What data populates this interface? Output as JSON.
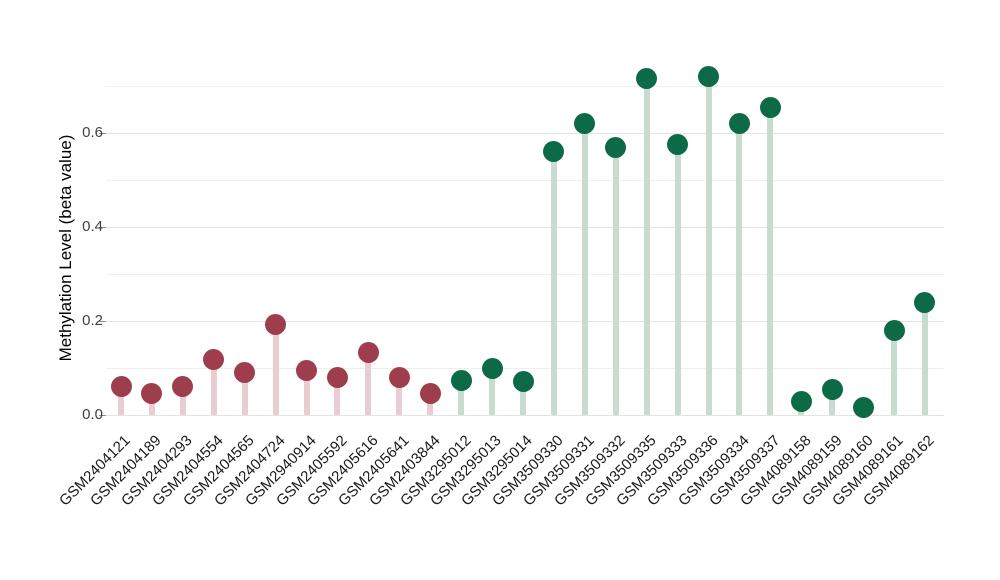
{
  "chart_data": {
    "type": "scatter",
    "style": "lollipop",
    "title": "",
    "xlabel": "",
    "ylabel": "Methylation Level (beta value)",
    "ylim": [
      0,
      0.75
    ],
    "yticks": [
      {
        "value": 0.0,
        "label": "0.0"
      },
      {
        "value": 0.2,
        "label": "0.2"
      },
      {
        "value": 0.4,
        "label": "0.4"
      },
      {
        "value": 0.6,
        "label": "0.6"
      }
    ],
    "minor_gridlines": [
      0.1,
      0.3,
      0.5,
      0.7
    ],
    "layout_hints": {
      "grid": true,
      "legend": "none",
      "x_label_rotation_deg": 45,
      "background": "#ffffff",
      "major_grid_color": "#e3e3e3",
      "minor_grid_color": "#efefef"
    },
    "groups": [
      {
        "name": "maroon-group",
        "dot_color": "#9e3d4c",
        "stem_color": "#e9cdd3"
      },
      {
        "name": "green-group",
        "dot_color": "#0d6a47",
        "stem_color": "#c7dbd1"
      }
    ],
    "samples": [
      {
        "id": "GSM2404121",
        "value": 0.06,
        "group": 0
      },
      {
        "id": "GSM2404189",
        "value": 0.045,
        "group": 0
      },
      {
        "id": "GSM2404293",
        "value": 0.06,
        "group": 0
      },
      {
        "id": "GSM2404554",
        "value": 0.118,
        "group": 0
      },
      {
        "id": "GSM2404565",
        "value": 0.091,
        "group": 0
      },
      {
        "id": "GSM2404724",
        "value": 0.193,
        "group": 0
      },
      {
        "id": "GSM2940914",
        "value": 0.094,
        "group": 0
      },
      {
        "id": "GSM2405592",
        "value": 0.08,
        "group": 0
      },
      {
        "id": "GSM2405616",
        "value": 0.133,
        "group": 0
      },
      {
        "id": "GSM2405641",
        "value": 0.08,
        "group": 0
      },
      {
        "id": "GSM2403844",
        "value": 0.046,
        "group": 0
      },
      {
        "id": "GSM3295012",
        "value": 0.074,
        "group": 1
      },
      {
        "id": "GSM3295013",
        "value": 0.098,
        "group": 1
      },
      {
        "id": "GSM3295014",
        "value": 0.072,
        "group": 1
      },
      {
        "id": "GSM3509330",
        "value": 0.56,
        "group": 1
      },
      {
        "id": "GSM3509331",
        "value": 0.62,
        "group": 1
      },
      {
        "id": "GSM3509332",
        "value": 0.57,
        "group": 1
      },
      {
        "id": "GSM3509335",
        "value": 0.715,
        "group": 1
      },
      {
        "id": "GSM3509333",
        "value": 0.575,
        "group": 1
      },
      {
        "id": "GSM3509336",
        "value": 0.72,
        "group": 1
      },
      {
        "id": "GSM3509334",
        "value": 0.62,
        "group": 1
      },
      {
        "id": "GSM3509337",
        "value": 0.655,
        "group": 1
      },
      {
        "id": "GSM4089158",
        "value": 0.029,
        "group": 1
      },
      {
        "id": "GSM4089159",
        "value": 0.054,
        "group": 1
      },
      {
        "id": "GSM4089160",
        "value": 0.015,
        "group": 1
      },
      {
        "id": "GSM4089161",
        "value": 0.179,
        "group": 1
      },
      {
        "id": "GSM4089162",
        "value": 0.24,
        "group": 1
      }
    ]
  }
}
